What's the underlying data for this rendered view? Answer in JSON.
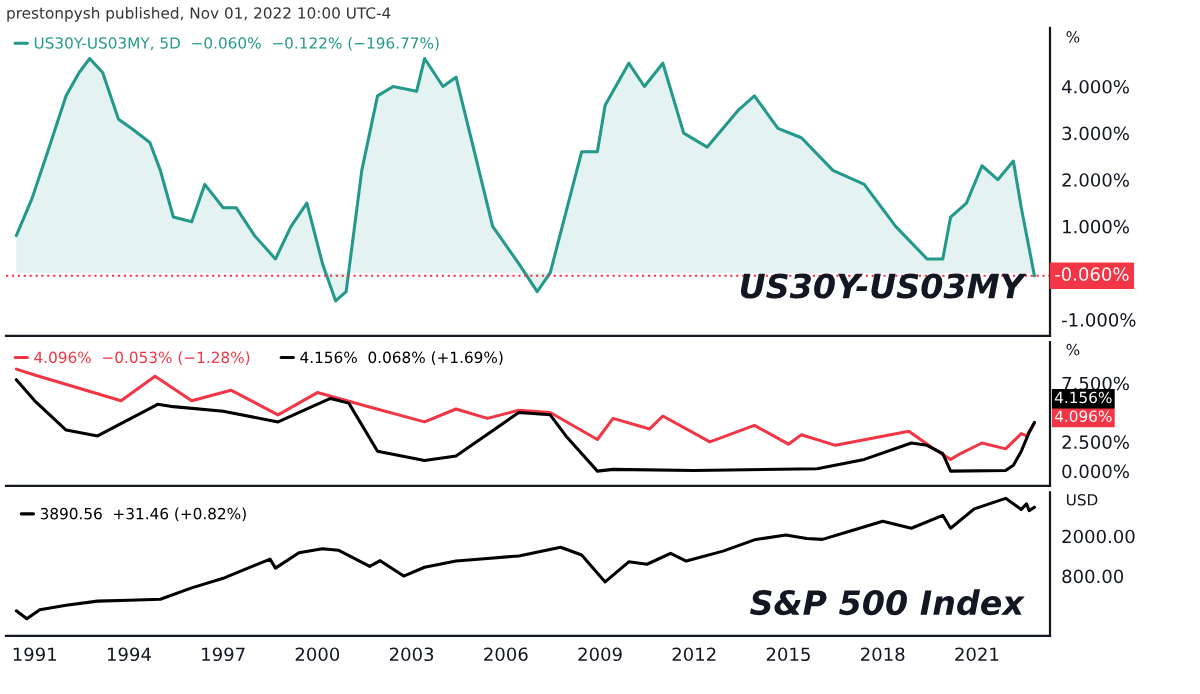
{
  "chart_data": [
    {
      "type": "area",
      "title": "prestonpysh published, Nov 01, 2022 10:00 UTC-4",
      "ylabel": "%",
      "legend": "top left",
      "tick_labels": "y",
      "xlim": [
        "1990-02",
        "2023-05"
      ],
      "xticks": [
        "1991",
        "1994",
        "1997",
        "2000",
        "2003",
        "2006",
        "2009",
        "2012",
        "2015",
        "2018",
        "2021"
      ],
      "ylim": [
        -1.35,
        5.26
      ],
      "yticks": [
        {
          "value": 4,
          "label": "4.000%"
        },
        {
          "value": 3,
          "label": "3.000%"
        },
        {
          "value": 2,
          "label": "2.000%"
        },
        {
          "value": 1,
          "label": "1.000%"
        },
        {
          "value": -1,
          "label": "-1.000%"
        }
      ],
      "ref_lines": [
        {
          "axis": "y",
          "value": -0.06,
          "label": "-0.060%",
          "color": "#f23645",
          "line_style": "dotted"
        }
      ],
      "annotations": [
        "US30Y-US03MY"
      ],
      "series": [
        {
          "name": "US30Y-US03MY, 5D  −0.060%  −0.122% (−196.77%)",
          "color": "#22998a",
          "x": [
            "1990-06",
            "1990-12",
            "1991-06",
            "1992-01",
            "1992-06",
            "1992-10",
            "1993-03",
            "1993-09",
            "1994-02",
            "1994-09",
            "1995-01",
            "1995-06",
            "1996-01",
            "1996-06",
            "1997-01",
            "1997-06",
            "1998-01",
            "1998-09",
            "1999-03",
            "1999-09",
            "2000-03",
            "2000-08",
            "2000-12",
            "2001-06",
            "2001-12",
            "2002-06",
            "2003-03",
            "2003-06",
            "2004-01",
            "2004-06",
            "2005-01",
            "2005-08",
            "2006-06",
            "2007-01",
            "2007-06",
            "2007-12",
            "2008-06",
            "2008-12",
            "2009-03",
            "2009-12",
            "2010-06",
            "2011-01",
            "2011-09",
            "2012-06",
            "2013-06",
            "2013-12",
            "2014-09",
            "2015-06",
            "2016-06",
            "2017-06",
            "2018-06",
            "2019-06",
            "2019-12",
            "2020-03",
            "2020-09",
            "2021-03",
            "2021-09",
            "2022-03",
            "2022-06",
            "2022-11"
          ],
          "values": [
            0.8,
            1.6,
            2.6,
            3.8,
            4.3,
            4.6,
            4.3,
            3.3,
            3.1,
            2.8,
            2.2,
            1.2,
            1.1,
            1.9,
            1.4,
            1.4,
            0.8,
            0.3,
            1.0,
            1.5,
            0.2,
            -0.6,
            -0.4,
            2.2,
            3.8,
            4.0,
            3.9,
            4.6,
            4.0,
            4.2,
            2.6,
            1.0,
            0.2,
            -0.4,
            0.0,
            1.3,
            2.6,
            2.6,
            3.6,
            4.5,
            4.0,
            4.5,
            3.0,
            2.7,
            3.5,
            3.8,
            3.1,
            2.9,
            2.2,
            1.9,
            1.0,
            0.3,
            0.3,
            1.2,
            1.5,
            2.3,
            2.0,
            2.4,
            1.4,
            -0.06
          ]
        }
      ]
    },
    {
      "type": "line",
      "ylabel": "%",
      "legend": "top left",
      "tick_labels": "y",
      "xlim": [
        "1990-02",
        "2023-05"
      ],
      "xticks": [
        "1991",
        "1994",
        "1997",
        "2000",
        "2003",
        "2006",
        "2009",
        "2012",
        "2015",
        "2018",
        "2021"
      ],
      "ylim": [
        -1.25,
        11
      ],
      "yticks": [
        {
          "value": 7.5,
          "label": "7.500%"
        },
        {
          "value": 2.5,
          "label": "2.500%"
        },
        {
          "value": 0,
          "label": "0.000%"
        }
      ],
      "annotations": [
        {
          "text": "4.096%",
          "x": "2022-11",
          "y": 4.096
        },
        {
          "text": "4.156%",
          "x": "2022-11",
          "y": 4.156
        }
      ],
      "series": [
        {
          "name": "4.096%  −0.053% (−1.28%)",
          "color": "#f23645",
          "x": [
            "1990-06",
            "1991-01",
            "1993-10",
            "1994-11",
            "1996-01",
            "1997-04",
            "1998-10",
            "2000-01",
            "2001-10",
            "2003-06",
            "2004-06",
            "2005-06",
            "2006-06",
            "2007-06",
            "2008-12",
            "2009-06",
            "2010-08",
            "2011-01",
            "2012-07",
            "2013-12",
            "2015-01",
            "2015-06",
            "2016-07",
            "2018-11",
            "2019-08",
            "2020-03",
            "2020-06",
            "2021-03",
            "2021-12",
            "2022-06",
            "2022-08",
            "2022-11"
          ],
          "values": [
            8.7,
            8.2,
            6.0,
            8.1,
            6.0,
            6.9,
            4.8,
            6.7,
            5.4,
            4.2,
            5.3,
            4.5,
            5.2,
            5.0,
            2.7,
            4.5,
            3.6,
            4.7,
            2.5,
            3.9,
            2.3,
            3.1,
            2.2,
            3.4,
            2.0,
            1.0,
            1.4,
            2.4,
            1.9,
            3.2,
            3.0,
            4.096
          ]
        },
        {
          "name": "4.156%  0.068% (+1.69%)",
          "color": "#000000",
          "x": [
            "1990-06",
            "1991-01",
            "1992-01",
            "1993-01",
            "1994-12",
            "1995-06",
            "1997-01",
            "1998-10",
            "2000-06",
            "2001-01",
            "2001-12",
            "2003-06",
            "2004-06",
            "2006-06",
            "2007-06",
            "2007-12",
            "2008-12",
            "2009-06",
            "2012-01",
            "2015-12",
            "2017-06",
            "2018-12",
            "2019-06",
            "2019-12",
            "2020-03",
            "2021-12",
            "2022-03",
            "2022-06",
            "2022-09",
            "2022-11"
          ],
          "values": [
            7.8,
            6.0,
            3.5,
            3.0,
            5.7,
            5.5,
            5.1,
            4.2,
            6.2,
            5.8,
            1.7,
            0.9,
            1.3,
            5.0,
            4.8,
            3.0,
            0.0,
            0.15,
            0.05,
            0.2,
            1.0,
            2.4,
            2.2,
            1.5,
            0.0,
            0.05,
            0.5,
            1.7,
            3.3,
            4.156
          ]
        }
      ]
    },
    {
      "type": "line",
      "ylabel": "USD",
      "legend": "top left",
      "log": true,
      "xlim": [
        "1990-02",
        "2023-05"
      ],
      "xticks": [
        "1991",
        "1994",
        "1997",
        "2000",
        "2003",
        "2006",
        "2009",
        "2012",
        "2015",
        "2018",
        "2021"
      ],
      "ylim": [
        202,
        5480
      ],
      "yticks": [
        {
          "value": 2000,
          "label": "2000.00"
        },
        {
          "value": 800,
          "label": "800.00"
        }
      ],
      "annotations": [
        "S&P 500 Index"
      ],
      "series": [
        {
          "name": "3890.56  +31.46 (+0.82%)",
          "color": "#000000",
          "x": [
            "1990-06",
            "1990-10",
            "1991-03",
            "1992-01",
            "1993-01",
            "1994-01",
            "1995-01",
            "1996-01",
            "1997-01",
            "1997-10",
            "1998-07",
            "1998-09",
            "1999-06",
            "2000-03",
            "2000-09",
            "2001-09",
            "2002-01",
            "2002-10",
            "2003-06",
            "2004-06",
            "2005-06",
            "2006-06",
            "2007-10",
            "2008-06",
            "2009-03",
            "2009-12",
            "2010-07",
            "2011-04",
            "2011-10",
            "2012-12",
            "2013-12",
            "2014-12",
            "2015-08",
            "2016-02",
            "2017-01",
            "2018-01",
            "2018-12",
            "2019-12",
            "2020-03",
            "2020-12",
            "2021-12",
            "2022-06",
            "2022-08",
            "2022-09",
            "2022-11"
          ],
          "values": [
            360,
            300,
            370,
            410,
            450,
            460,
            470,
            610,
            760,
            950,
            1180,
            960,
            1370,
            1500,
            1450,
            1000,
            1140,
            800,
            980,
            1130,
            1200,
            1270,
            1550,
            1300,
            700,
            1110,
            1050,
            1350,
            1130,
            1420,
            1840,
            2060,
            1900,
            1860,
            2270,
            2820,
            2400,
            3230,
            2400,
            3750,
            4770,
            3700,
            4200,
            3600,
            3890.56
          ]
        }
      ]
    }
  ]
}
